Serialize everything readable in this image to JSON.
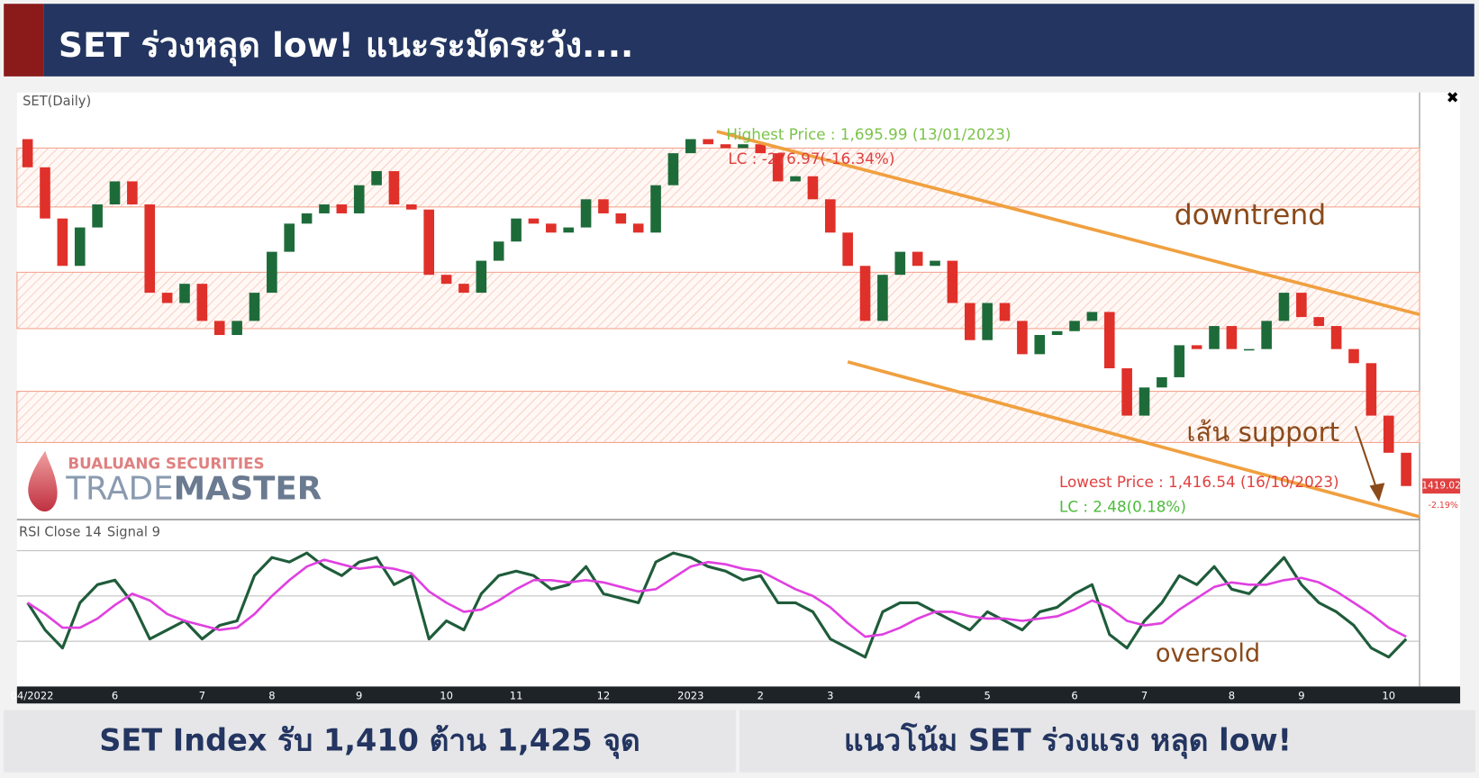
{
  "header": {
    "title": "SET ร่วงหลุด low! แนะระมัดระวัง...."
  },
  "logo": {
    "company": "BUALUANG SECURITIES",
    "brand_light": "TRADE",
    "brand_bold": "MASTER"
  },
  "chart_data": [
    {
      "type": "candlestick",
      "title": "SET(Daily)",
      "categories": [
        "04/2022",
        null,
        null,
        null,
        null,
        "6",
        null,
        null,
        null,
        null,
        "7",
        null,
        null,
        null,
        "8",
        null,
        null,
        null,
        null,
        "9",
        null,
        null,
        null,
        null,
        "10",
        null,
        null,
        null,
        "11",
        null,
        null,
        null,
        null,
        "12",
        null,
        null,
        null,
        null,
        "2023",
        null,
        null,
        null,
        "2",
        null,
        null,
        null,
        "3",
        null,
        null,
        null,
        null,
        "4",
        null,
        null,
        null,
        "5",
        null,
        null,
        null,
        null,
        "6",
        null,
        null,
        null,
        "7",
        null,
        null,
        null,
        null,
        "8",
        null,
        null,
        null,
        "9",
        null,
        null,
        null,
        null,
        "10",
        null
      ],
      "open": [
        1690,
        1668,
        1628,
        1591,
        1621,
        1639,
        1657,
        1639,
        1570,
        1562,
        1577,
        1548,
        1537,
        1548,
        1570,
        1602,
        1624,
        1632,
        1639,
        1632,
        1654,
        1665,
        1639,
        1635,
        1584,
        1577,
        1570,
        1595,
        1610,
        1628,
        1624,
        1617,
        1621,
        1643,
        1632,
        1624,
        1617,
        1654,
        1679,
        1690,
        1686,
        1683,
        1686,
        1679,
        1657,
        1661,
        1643,
        1617,
        1591,
        1548,
        1584,
        1602,
        1591,
        1595,
        1562,
        1533,
        1562,
        1548,
        1522,
        1537,
        1540,
        1548,
        1555,
        1511,
        1474,
        1496,
        1504,
        1529,
        1526,
        1544,
        1526,
        1526,
        1548,
        1570,
        1551,
        1544,
        1526,
        1515,
        1474,
        1445
      ],
      "close": [
        1668,
        1628,
        1591,
        1621,
        1639,
        1657,
        1639,
        1570,
        1562,
        1577,
        1548,
        1537,
        1548,
        1570,
        1602,
        1624,
        1632,
        1639,
        1632,
        1654,
        1665,
        1639,
        1635,
        1584,
        1577,
        1570,
        1595,
        1610,
        1628,
        1624,
        1617,
        1621,
        1643,
        1632,
        1624,
        1617,
        1654,
        1679,
        1690,
        1686,
        1683,
        1686,
        1679,
        1657,
        1661,
        1643,
        1617,
        1591,
        1548,
        1584,
        1602,
        1591,
        1595,
        1562,
        1533,
        1562,
        1548,
        1522,
        1537,
        1540,
        1548,
        1555,
        1511,
        1474,
        1496,
        1504,
        1529,
        1526,
        1544,
        1526,
        1526,
        1548,
        1570,
        1551,
        1544,
        1526,
        1515,
        1474,
        1445,
        1419.02
      ],
      "up_color": "#1e6b3a",
      "down_color": "#e0302a",
      "ylim": [
        1395,
        1725
      ],
      "zones": [
        [
          1637,
          1683
        ],
        [
          1542,
          1586
        ],
        [
          1453,
          1493
        ]
      ],
      "trendlines": [
        {
          "from": [
            39.5,
            1696
          ],
          "to": [
            80,
            1553
          ]
        },
        {
          "from": [
            47,
            1516
          ],
          "to": [
            80,
            1395
          ]
        }
      ],
      "trendline_color": "#f0a040",
      "change_label": "-2.19%",
      "annotations": {
        "highest": "Highest Price : 1,695.99 (13/01/2023)",
        "highest_lc": "LC : -276.97(-16.34%)",
        "lowest": "Lowest Price : 1,416.54 (16/10/2023)",
        "lowest_lc": "LC : 2.48(0.18%)",
        "downtrend": "downtrend",
        "support": "เส้น support"
      }
    },
    {
      "type": "line",
      "title": "RSI Close 14",
      "ylim": [
        10,
        80
      ],
      "levels": [
        30,
        50,
        70
      ],
      "series": [
        {
          "name": "RSI Close 14",
          "color": "#1f5c3a",
          "values": [
            47,
            35,
            27,
            47,
            55,
            57,
            47,
            31,
            35,
            39,
            31,
            37,
            39,
            59,
            67,
            65,
            69,
            63,
            59,
            65,
            67,
            55,
            59,
            31,
            39,
            35,
            51,
            59,
            61,
            59,
            53,
            55,
            63,
            51,
            49,
            47,
            65,
            69,
            67,
            63,
            61,
            57,
            59,
            47,
            47,
            43,
            31,
            27,
            23,
            43,
            47,
            47,
            43,
            39,
            35,
            43,
            39,
            35,
            43,
            45,
            51,
            55,
            33,
            27,
            39,
            47,
            59,
            55,
            63,
            53,
            51,
            59,
            67,
            55,
            47,
            43,
            37,
            27,
            23,
            31
          ]
        },
        {
          "name": "Signal 9",
          "color": "#e040e0",
          "values": [
            47,
            42,
            36,
            36,
            40,
            46,
            51,
            48,
            42,
            39,
            37,
            35,
            36,
            42,
            50,
            57,
            63,
            66,
            64,
            62,
            63,
            62,
            60,
            52,
            47,
            43,
            44,
            48,
            53,
            57,
            57,
            56,
            57,
            56,
            54,
            52,
            53,
            58,
            63,
            65,
            64,
            62,
            61,
            57,
            53,
            50,
            45,
            38,
            32,
            33,
            36,
            40,
            43,
            43,
            41,
            40,
            40,
            39,
            40,
            41,
            44,
            48,
            45,
            39,
            37,
            38,
            44,
            49,
            54,
            56,
            55,
            55,
            57,
            58,
            56,
            52,
            47,
            42,
            36,
            32
          ]
        }
      ],
      "annotation": "oversold"
    }
  ],
  "footer": {
    "left": "SET Index รับ 1,410 ต้าน 1,425 จุด",
    "right": "แนวโน้ม SET ร่วงแรง หลุด low!"
  }
}
